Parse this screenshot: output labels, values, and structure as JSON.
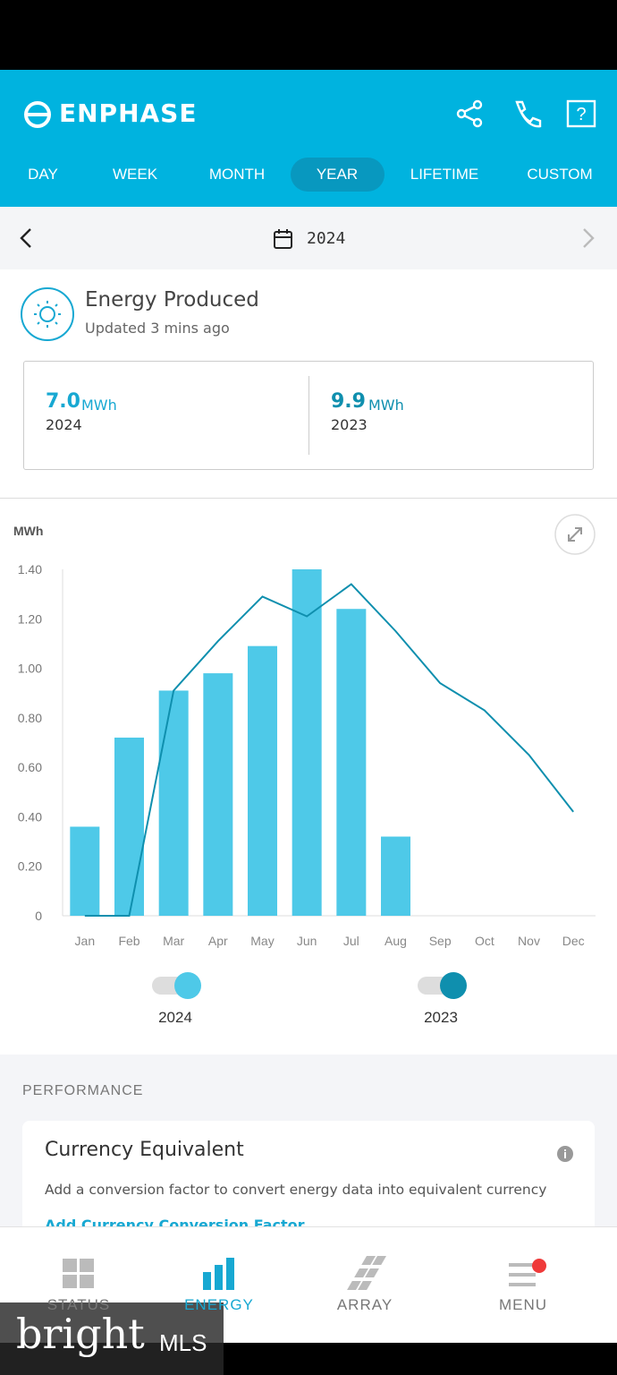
{
  "header": {
    "logo": "ENPHASE",
    "tabs": [
      "DAY",
      "WEEK",
      "MONTH",
      "YEAR",
      "LIFETIME",
      "CUSTOM"
    ],
    "active_tab": 3
  },
  "date_bar": {
    "date": "2024"
  },
  "summary": {
    "title": "Energy Produced",
    "updated": "Updated 3 mins ago",
    "items": [
      {
        "value": "7.0",
        "unit": "MWh",
        "year": "2024"
      },
      {
        "value": "9.9",
        "unit": "MWh",
        "year": "2023"
      }
    ]
  },
  "chart_data": {
    "type": "bar",
    "ylabel": "MWh",
    "categories": [
      "Jan",
      "Feb",
      "Mar",
      "Apr",
      "May",
      "Jun",
      "Jul",
      "Aug",
      "Sep",
      "Oct",
      "Nov",
      "Dec"
    ],
    "series": [
      {
        "name": "2024",
        "type": "bar",
        "color": "#4ec9e8",
        "values": [
          0.36,
          0.72,
          0.91,
          0.98,
          1.09,
          1.4,
          1.24,
          0.32,
          null,
          null,
          null,
          null
        ]
      },
      {
        "name": "2023",
        "type": "line",
        "color": "#0f8fae",
        "values": [
          0,
          0,
          0.91,
          1.11,
          1.29,
          1.21,
          1.34,
          1.15,
          0.94,
          0.83,
          0.65,
          0.42
        ]
      }
    ],
    "ylim": [
      0,
      1.4
    ],
    "yticks": [
      0,
      {
        "value": 0.2,
        "label": "0.20"
      },
      {
        "value": 0.4,
        "label": "0.40"
      },
      {
        "value": 0.6,
        "label": "0.60"
      },
      {
        "value": 0.8,
        "label": "0.80"
      },
      {
        "value": 1.0,
        "label": "1.00"
      },
      {
        "value": 1.2,
        "label": "1.20"
      },
      {
        "value": 1.4,
        "label": "1.40"
      }
    ],
    "grid": false
  },
  "performance": {
    "section": "PERFORMANCE",
    "card_title": "Currency Equivalent",
    "card_text": "Add a conversion factor to convert energy data into equivalent currency",
    "card_link": "Add Currency Conversion Factor"
  },
  "nav": {
    "items": [
      "STATUS",
      "ENERGY",
      "ARRAY",
      "MENU"
    ],
    "active": 1
  },
  "watermark": {
    "brand": "bright",
    "suffix": "MLS"
  }
}
